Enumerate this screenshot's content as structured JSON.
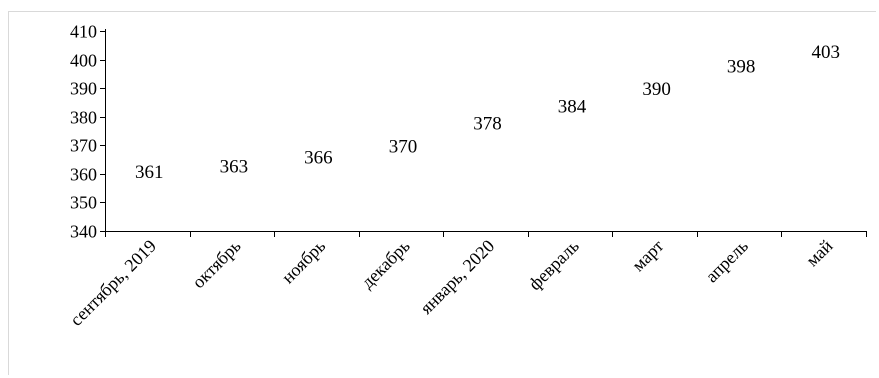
{
  "chart_data": {
    "type": "scatter",
    "categories": [
      "сентябрь, 2019",
      "октябрь",
      "ноябрь",
      "декабрь",
      "январь, 2020",
      "февраль",
      "март",
      "апрель",
      "май"
    ],
    "values": [
      361,
      363,
      366,
      370,
      378,
      384,
      390,
      398,
      403
    ],
    "data_labels": [
      "361",
      "363",
      "366",
      "370",
      "378",
      "384",
      "390",
      "398",
      "403"
    ],
    "y_ticks": [
      "410",
      "400",
      "390",
      "380",
      "370",
      "360",
      "350",
      "340"
    ],
    "ylim": [
      340,
      410
    ],
    "grid": false,
    "markers": "labels-only",
    "colors": {
      "axis": "#000000",
      "frame": "#d9d9d9",
      "text": "#000000"
    }
  }
}
